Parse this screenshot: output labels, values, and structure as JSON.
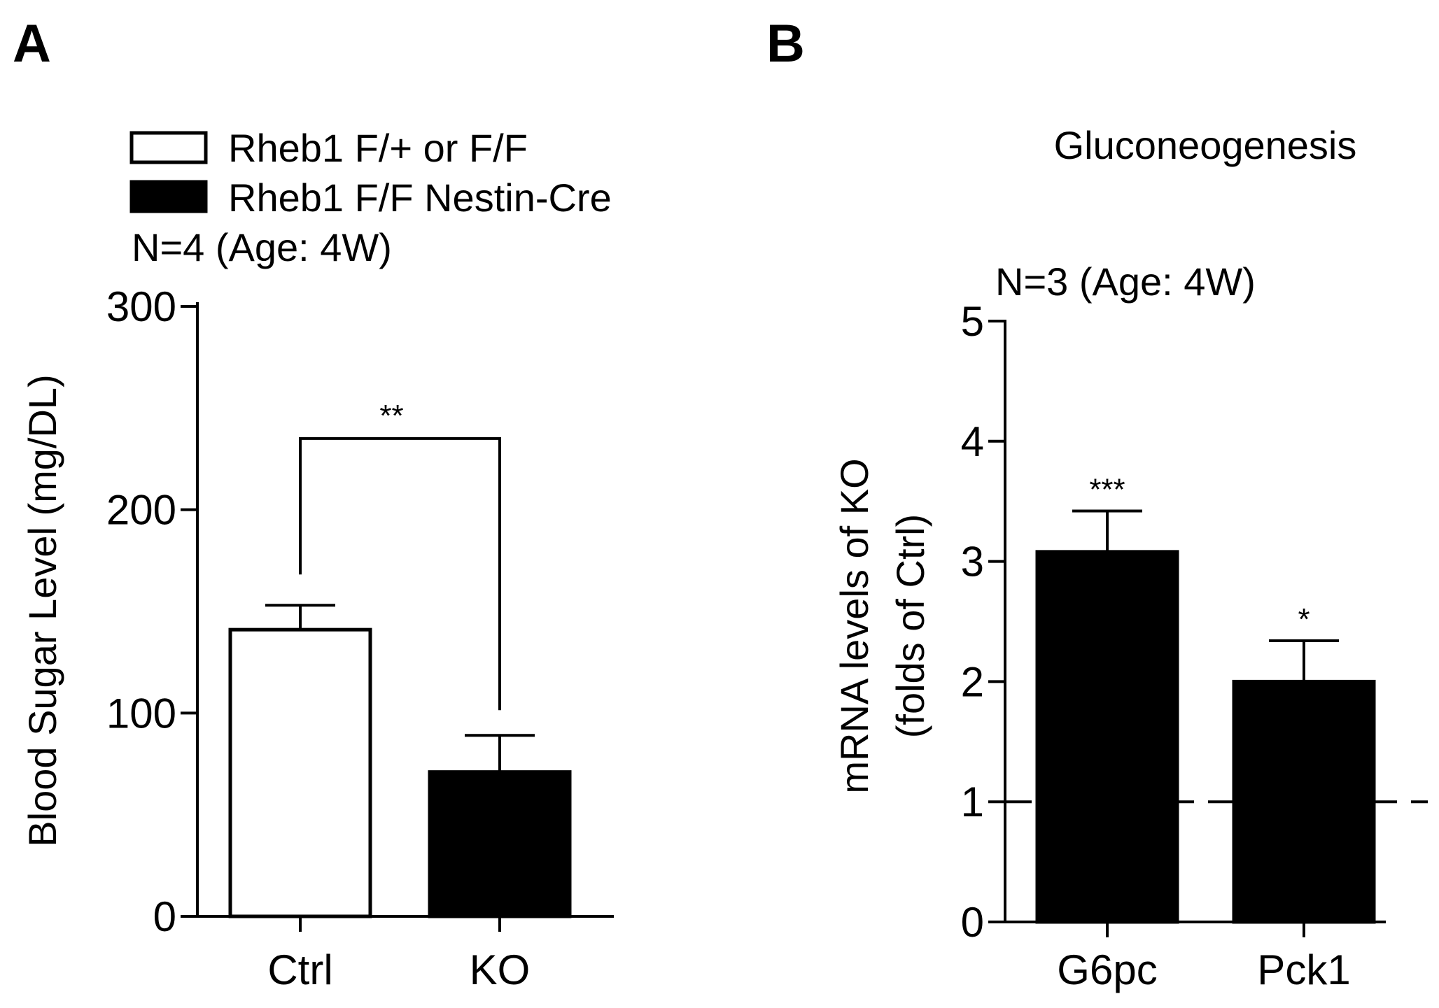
{
  "chart_data": [
    {
      "panel": "A",
      "type": "bar",
      "title": "",
      "legend": [
        {
          "label": "Rheb1 F/+ or F/F",
          "fill": "#ffffff",
          "stroke": "#000000"
        },
        {
          "label": "Rheb1 F/F Nestin-Cre",
          "fill": "#000000",
          "stroke": "#000000"
        }
      ],
      "note": "N=4 (Age: 4W)",
      "categories": [
        "Ctrl",
        "KO"
      ],
      "values": [
        141,
        71
      ],
      "errors": [
        12,
        18
      ],
      "fills": [
        "#ffffff",
        "#000000"
      ],
      "xlabel": "",
      "ylabel": "Blood Sugar Level (mg/DL)",
      "ylim": [
        0,
        300
      ],
      "yticks": [
        0,
        100,
        200,
        300
      ],
      "yticklabels": [
        "0",
        "100",
        "200",
        "300"
      ],
      "significance": [
        {
          "from": "Ctrl",
          "to": "KO",
          "label": "**",
          "level": 235
        }
      ]
    },
    {
      "panel": "B",
      "type": "bar",
      "title": "Gluconeogenesis",
      "note": "N=3 (Age: 4W)",
      "categories": [
        "G6pc",
        "Pck1"
      ],
      "values": [
        3.08,
        2.0
      ],
      "errors": [
        0.34,
        0.34
      ],
      "fills": [
        "#000000",
        "#000000"
      ],
      "labels": [
        "***",
        "*"
      ],
      "xlabel": "",
      "ylabel_lines": [
        "mRNA levels of KO",
        "(folds of Ctrl)"
      ],
      "ylim": [
        0,
        5
      ],
      "yticks": [
        0,
        1,
        2,
        3,
        4,
        5
      ],
      "yticklabels": [
        "0",
        "1",
        "2",
        "3",
        "4",
        "5"
      ],
      "reference_line": 1
    }
  ]
}
